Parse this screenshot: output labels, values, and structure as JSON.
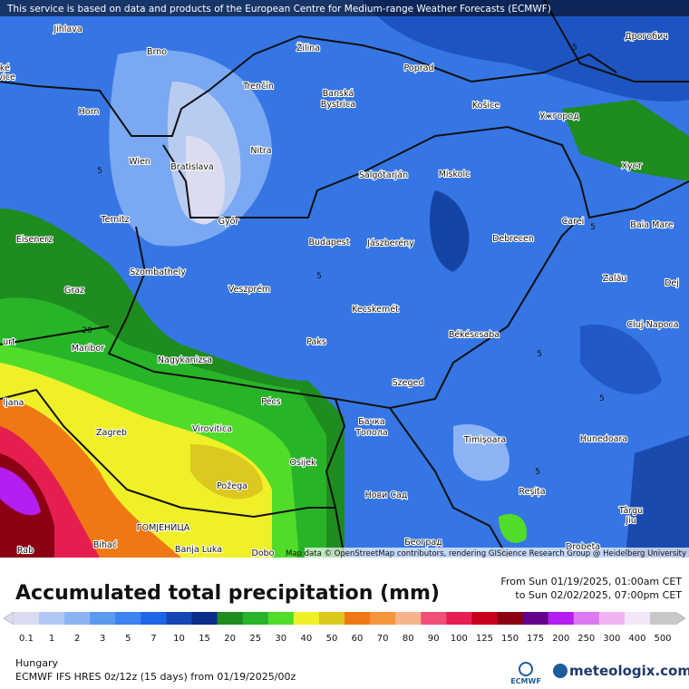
{
  "header": {
    "notice": "This service is based on data and products of the European Centre for Medium-range Weather Forecasts (ECMWF)"
  },
  "map": {
    "labels": [
      "Jihlava",
      "Brno",
      "Žilina",
      "Poprad",
      "Дрогобич",
      "eské",
      "ějovice",
      "Trenčín",
      "Banská",
      "Bystrica",
      "Košice",
      "Ужгород",
      "Horn",
      "Nitra",
      "Wien",
      "Bratislava",
      "Salgótarján",
      "Miskolc",
      "Хуст",
      "Ternitz",
      "Győr",
      "Carei",
      "Baia Mare",
      "Eisenerz",
      "Budapest",
      "Jászberény",
      "Debrecen",
      "Szombathely",
      "Zalău",
      "Graz",
      "Veszprém",
      "Dej",
      "Kecskemét",
      "Cluj-Napoca",
      "Maribor",
      "Paks",
      "Békéscsaba",
      "Nagykanizsa",
      "Szeged",
      "Pécs",
      "ljana",
      "Бачка",
      "Топола",
      "Zagreb",
      "Virovitica",
      "Timișoara",
      "Hunedoara",
      "Osijek",
      "Požega",
      "Нови Сад",
      "Reșița",
      "Târgu",
      "Jiu",
      "ГОМЈЕНИЦА",
      "Banja Luka",
      "Bihać",
      "Rab",
      "Dobo",
      "Београд",
      "Drobeta",
      "urt"
    ],
    "contours": [
      "5",
      "5",
      "5",
      "5",
      "5",
      "5",
      "5",
      "20"
    ],
    "attribution": "Map data © OpenStreetMap contributors, rendering GIScience Research Group @ Heidelberg University"
  },
  "legend": {
    "title": "Accumulated total precipitation (mm)",
    "from": "From Sun 01/19/2025, 01:00am CET",
    "to": "to Sun 02/02/2025, 07:00pm CET",
    "steps": [
      {
        "label": 0.1,
        "color": "#dcdcf0"
      },
      {
        "label": 1,
        "color": "#b4c8f5"
      },
      {
        "label": 2,
        "color": "#8cb4f5"
      },
      {
        "label": 3,
        "color": "#5a9bf0"
      },
      {
        "label": 5,
        "color": "#3c82f0"
      },
      {
        "label": 7,
        "color": "#1e64e6"
      },
      {
        "label": 10,
        "color": "#1446b4"
      },
      {
        "label": 15,
        "color": "#0a2d8c"
      },
      {
        "label": 20,
        "color": "#1e8c1e"
      },
      {
        "label": 25,
        "color": "#28b428"
      },
      {
        "label": 30,
        "color": "#50dc28"
      },
      {
        "label": 40,
        "color": "#f0f028"
      },
      {
        "label": 50,
        "color": "#dcc81e"
      },
      {
        "label": 60,
        "color": "#f07814"
      },
      {
        "label": 70,
        "color": "#f5963c"
      },
      {
        "label": 80,
        "color": "#f5b48c"
      },
      {
        "label": 90,
        "color": "#f05078"
      },
      {
        "label": 100,
        "color": "#e61e50"
      },
      {
        "label": 125,
        "color": "#c8001e"
      },
      {
        "label": 150,
        "color": "#8c0014"
      },
      {
        "label": 175,
        "color": "#64008c"
      },
      {
        "label": 200,
        "color": "#b41ef0"
      },
      {
        "label": 250,
        "color": "#dc78f0"
      },
      {
        "label": 300,
        "color": "#f0b4f5"
      },
      {
        "label": 400,
        "color": "#f5e6fa"
      },
      {
        "label": 500,
        "color": "#c8c8c8"
      }
    ]
  },
  "footer": {
    "region": "Hungary",
    "model": "ECMWF IFS HRES 0z/12z (15 days) from 01/19/2025/00z",
    "ecmwf": "ECMWF",
    "brand": "meteologix.com"
  }
}
